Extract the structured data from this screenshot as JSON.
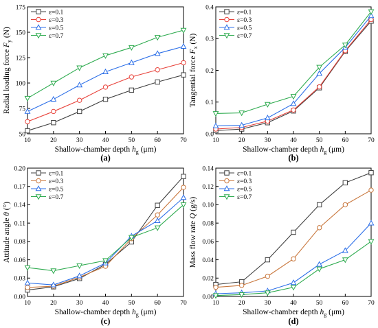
{
  "chart_data": [
    {
      "type": "line",
      "panel_label": "(a)",
      "xlabel": "Shallow-chamber depth h_g (μm)",
      "xlabel_parts": [
        "Shallow-chamber depth ",
        "h",
        "g",
        " (μm)"
      ],
      "ylabel": "Radial loading force F_y (N)",
      "ylabel_parts": [
        "Radial loading force ",
        "F",
        "y",
        " (N)"
      ],
      "x": [
        10,
        20,
        30,
        40,
        50,
        60,
        70
      ],
      "xlim": [
        10,
        70
      ],
      "ylim": [
        50,
        175
      ],
      "xticks": [
        "10",
        "20",
        "30",
        "40",
        "50",
        "60",
        "70"
      ],
      "yticks": [
        "50",
        "75",
        "100",
        "125",
        "150",
        "175"
      ],
      "legend_position": "top-left",
      "series": [
        {
          "name": "ε=0.1",
          "color": "#404040",
          "marker": "square",
          "values": [
            53,
            61,
            72,
            84,
            93,
            101,
            108
          ]
        },
        {
          "name": "ε=0.3",
          "color": "#e8423a",
          "marker": "circle",
          "values": [
            62,
            72,
            83,
            96,
            106,
            113,
            120
          ]
        },
        {
          "name": "ε=0.5",
          "color": "#2c6fe8",
          "marker": "triangle-up",
          "values": [
            72,
            84,
            98,
            111,
            120,
            129,
            136
          ]
        },
        {
          "name": "ε=0.7",
          "color": "#2eab4f",
          "marker": "triangle-down",
          "values": [
            85,
            100,
            115,
            127,
            135,
            145,
            152
          ]
        }
      ]
    },
    {
      "type": "line",
      "panel_label": "(b)",
      "xlabel": "Shallow-chamber depth h_g (μm)",
      "xlabel_parts": [
        "Shallow-chamber depth ",
        "h",
        "g",
        " (μm)"
      ],
      "ylabel": "Tangential force F_x (N)",
      "ylabel_parts": [
        "Tangential force ",
        "F",
        "x",
        " (N)"
      ],
      "x": [
        10,
        20,
        30,
        40,
        50,
        60,
        70
      ],
      "xlim": [
        10,
        70
      ],
      "ylim": [
        0.0,
        0.4
      ],
      "xticks": [
        "10",
        "20",
        "30",
        "40",
        "50",
        "60",
        "70"
      ],
      "yticks": [
        "0.0",
        "0.1",
        "0.2",
        "0.3",
        "0.4"
      ],
      "legend_position": "top-left",
      "series": [
        {
          "name": "ε=0.1",
          "color": "#404040",
          "marker": "square",
          "values": [
            0.01,
            0.015,
            0.035,
            0.072,
            0.145,
            0.26,
            0.355
          ]
        },
        {
          "name": "ε=0.3",
          "color": "#e8423a",
          "marker": "circle",
          "values": [
            0.015,
            0.02,
            0.04,
            0.075,
            0.148,
            0.262,
            0.36
          ]
        },
        {
          "name": "ε=0.5",
          "color": "#2c6fe8",
          "marker": "triangle-up",
          "values": [
            0.025,
            0.027,
            0.05,
            0.095,
            0.19,
            0.272,
            0.372
          ]
        },
        {
          "name": "ε=0.7",
          "color": "#2eab4f",
          "marker": "triangle-down",
          "values": [
            0.064,
            0.066,
            0.093,
            0.118,
            0.21,
            0.28,
            0.385
          ]
        }
      ]
    },
    {
      "type": "line",
      "panel_label": "(c)",
      "xlabel": "Shallow-chamber depth h_g (μm)",
      "xlabel_parts": [
        "Shallow-chamber depth ",
        "h",
        "g",
        " (μm)"
      ],
      "ylabel": "Attitude angle θ (°)",
      "ylabel_parts": [
        "Attitude angle ",
        "θ",
        "",
        " (°)"
      ],
      "x": [
        10,
        20,
        30,
        40,
        50,
        60,
        70
      ],
      "xlim": [
        10,
        70
      ],
      "ylim": [
        0.0,
        0.2
      ],
      "xticks": [
        "10",
        "20",
        "30",
        "40",
        "50",
        "60",
        "70"
      ],
      "yticks": [
        "0.00",
        "0.03",
        "0.06",
        "0.08",
        "0.11",
        "0.14",
        "0.17",
        "0.20"
      ],
      "ytick_values": [
        0.0,
        0.0286,
        0.0571,
        0.0857,
        0.1143,
        0.1429,
        0.1714,
        0.2
      ],
      "legend_position": "top-left",
      "series": [
        {
          "name": "ε=0.1",
          "color": "#404040",
          "marker": "square",
          "values": [
            0.01,
            0.015,
            0.028,
            0.05,
            0.085,
            0.142,
            0.187
          ]
        },
        {
          "name": "ε=0.3",
          "color": "#c8753a",
          "marker": "circle",
          "values": [
            0.014,
            0.016,
            0.03,
            0.047,
            0.09,
            0.127,
            0.17
          ]
        },
        {
          "name": "ε=0.5",
          "color": "#2c6fe8",
          "marker": "triangle-up",
          "values": [
            0.021,
            0.018,
            0.032,
            0.052,
            0.094,
            0.118,
            0.154
          ]
        },
        {
          "name": "ε=0.7",
          "color": "#2eab4f",
          "marker": "triangle-down",
          "values": [
            0.045,
            0.04,
            0.048,
            0.056,
            0.092,
            0.107,
            0.143
          ]
        }
      ]
    },
    {
      "type": "line",
      "panel_label": "(d)",
      "xlabel": "Shallow-chamber depth h_g (μm)",
      "xlabel_parts": [
        "Shallow-chamber depth ",
        "h",
        "g",
        " (μm)"
      ],
      "ylabel": "Mass flow rate Q (g/s)",
      "ylabel_parts": [
        "Mass flow rate ",
        "Q",
        "",
        " (g/s)"
      ],
      "x": [
        10,
        20,
        30,
        40,
        50,
        60,
        70
      ],
      "xlim": [
        10,
        70
      ],
      "ylim": [
        0.0,
        0.14
      ],
      "xticks": [
        "10",
        "20",
        "30",
        "40",
        "50",
        "60",
        "70"
      ],
      "yticks": [
        "0.00",
        "0.02",
        "0.04",
        "0.06",
        "0.08",
        "0.10",
        "0.12",
        "0.14"
      ],
      "legend_position": "top-left",
      "series": [
        {
          "name": "ε=0.1",
          "color": "#404040",
          "marker": "square",
          "values": [
            0.013,
            0.016,
            0.04,
            0.07,
            0.1,
            0.124,
            0.135
          ]
        },
        {
          "name": "ε=0.3",
          "color": "#c8753a",
          "marker": "circle",
          "values": [
            0.01,
            0.012,
            0.022,
            0.041,
            0.075,
            0.1,
            0.116
          ]
        },
        {
          "name": "ε=0.5",
          "color": "#2c6fe8",
          "marker": "triangle-up",
          "values": [
            0.003,
            0.004,
            0.006,
            0.015,
            0.035,
            0.05,
            0.08
          ]
        },
        {
          "name": "ε=0.7",
          "color": "#2eab4f",
          "marker": "triangle-down",
          "values": [
            0.001,
            0.002,
            0.004,
            0.01,
            0.03,
            0.04,
            0.06
          ]
        }
      ]
    }
  ]
}
